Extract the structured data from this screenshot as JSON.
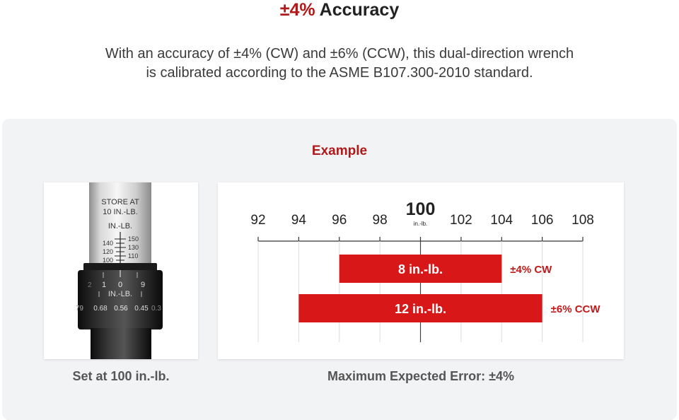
{
  "header": {
    "title_accent": "±4%",
    "title_rest": "Accuracy",
    "description_line1": "With an accuracy of ±4% (CW) and ±6% (CCW), this dual-direction wrench",
    "description_line2": "is calibrated according to the ASME B107.300-2010 standard."
  },
  "example_label": "Example",
  "photo": {
    "store_line1": "STORE AT",
    "store_line2": "10 IN.-LB.",
    "unit_label": "IN.-LB.",
    "scale_left": [
      "140",
      "120",
      "100"
    ],
    "scale_right": [
      "150",
      "130",
      "110"
    ],
    "thimble_digits": [
      "2",
      "1",
      "0",
      "9"
    ],
    "thimble_unit": "IN.-LB.",
    "thimble_values": [
      "79",
      "0.68",
      "0.56",
      "0.45",
      "0.3"
    ]
  },
  "captions": {
    "left": "Set at 100 in.-lb.",
    "right": "Maximum Expected Error: ±4%"
  },
  "chart_data": {
    "type": "bar",
    "orientation": "horizontal-range",
    "x_ticks": [
      "92",
      "94",
      "96",
      "98",
      "100",
      "102",
      "104",
      "106",
      "108"
    ],
    "x_min": 92,
    "x_max": 108,
    "center_value": 100,
    "center_label": "100",
    "center_unit": "in.-lb.",
    "bar_color": "#d81818",
    "series": [
      {
        "start": 96,
        "end": 104,
        "label": "8 in.-lb.",
        "side_label": "±4% CW"
      },
      {
        "start": 94,
        "end": 106,
        "label": "12 in.-lb.",
        "side_label": "±6% CCW"
      }
    ]
  }
}
